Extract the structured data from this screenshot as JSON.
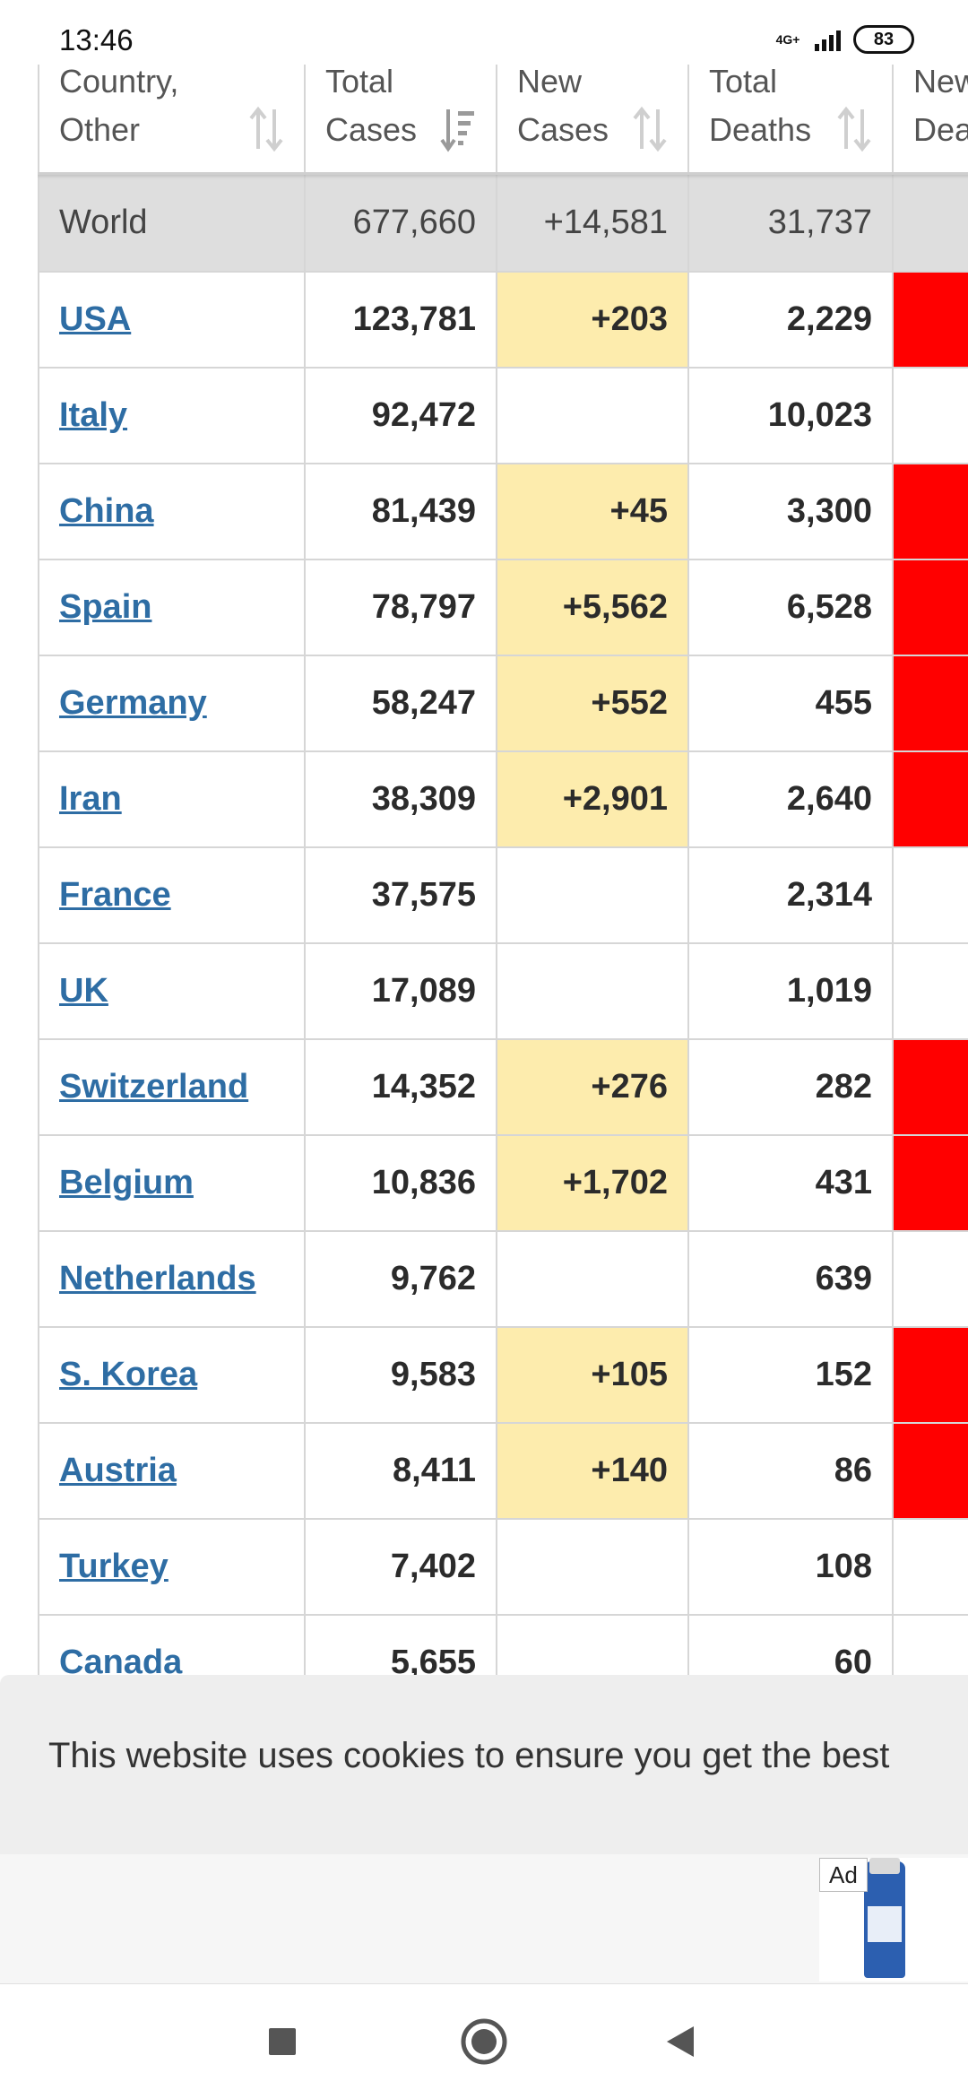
{
  "status_bar": {
    "time": "13:46",
    "network": "4G+",
    "battery": "83"
  },
  "table": {
    "headers": [
      {
        "line1": "Country,",
        "line2": "Other"
      },
      {
        "line1": "Total",
        "line2": "Cases"
      },
      {
        "line1": "New",
        "line2": "Cases"
      },
      {
        "line1": "Total",
        "line2": "Deaths"
      },
      {
        "line1": "New",
        "line2": "Dea"
      }
    ],
    "world": {
      "country": "World",
      "total_cases": "677,660",
      "new_cases": "+14,581",
      "total_deaths": "31,737"
    },
    "rows": [
      {
        "country": "USA",
        "total_cases": "123,781",
        "new_cases": "+203",
        "total_deaths": "2,229"
      },
      {
        "country": "Italy",
        "total_cases": "92,472",
        "new_cases": "",
        "total_deaths": "10,023"
      },
      {
        "country": "China",
        "total_cases": "81,439",
        "new_cases": "+45",
        "total_deaths": "3,300"
      },
      {
        "country": "Spain",
        "total_cases": "78,797",
        "new_cases": "+5,562",
        "total_deaths": "6,528"
      },
      {
        "country": "Germany",
        "total_cases": "58,247",
        "new_cases": "+552",
        "total_deaths": "455"
      },
      {
        "country": "Iran",
        "total_cases": "38,309",
        "new_cases": "+2,901",
        "total_deaths": "2,640"
      },
      {
        "country": "France",
        "total_cases": "37,575",
        "new_cases": "",
        "total_deaths": "2,314"
      },
      {
        "country": "UK",
        "total_cases": "17,089",
        "new_cases": "",
        "total_deaths": "1,019"
      },
      {
        "country": "Switzerland",
        "total_cases": "14,352",
        "new_cases": "+276",
        "total_deaths": "282"
      },
      {
        "country": "Belgium",
        "total_cases": "10,836",
        "new_cases": "+1,702",
        "total_deaths": "431"
      },
      {
        "country": "Netherlands",
        "total_cases": "9,762",
        "new_cases": "",
        "total_deaths": "639"
      },
      {
        "country": "S. Korea",
        "total_cases": "9,583",
        "new_cases": "+105",
        "total_deaths": "152"
      },
      {
        "country": "Austria",
        "total_cases": "8,411",
        "new_cases": "+140",
        "total_deaths": "86"
      },
      {
        "country": "Turkey",
        "total_cases": "7,402",
        "new_cases": "",
        "total_deaths": "108"
      },
      {
        "country": "Canada",
        "total_cases": "5,655",
        "new_cases": "",
        "total_deaths": "60"
      }
    ]
  },
  "cookie_banner": {
    "text": "This website uses cookies to ensure you get the best"
  },
  "ad": {
    "label": "Ad"
  },
  "colors": {
    "link": "#2e6da4",
    "new_cases_highlight": "#fdecad",
    "new_deaths_highlight": "#ff0000",
    "world_row": "#dedede"
  }
}
